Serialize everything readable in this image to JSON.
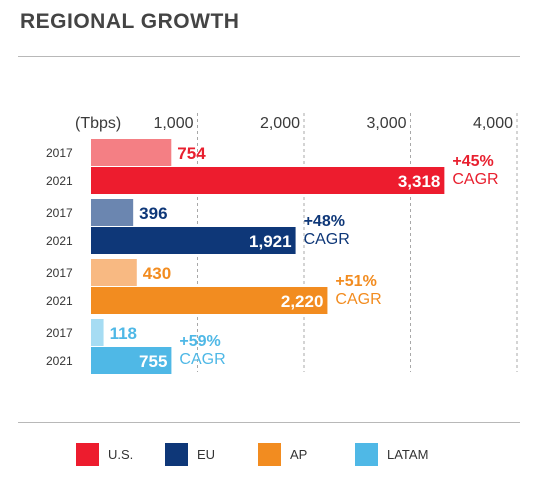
{
  "title": "REGIONAL GROWTH",
  "chart_data": {
    "type": "bar",
    "orientation": "horizontal",
    "unit_label": "(Tbps)",
    "xlim": [
      0,
      4000
    ],
    "ticks": [
      "1,000",
      "2,000",
      "3,000",
      "4,000"
    ],
    "tick_values": [
      1000,
      2000,
      3000,
      4000
    ],
    "grid": "vertical dashed",
    "legend_position": "bottom",
    "groups": [
      {
        "region": "U.S.",
        "color_2017": "#f47f84",
        "color_2021": "#ed1c2e",
        "label_color": "#e8202f",
        "bars": [
          {
            "year": "2017",
            "value": 754,
            "label": "754"
          },
          {
            "year": "2021",
            "value": 3318,
            "label": "3,318"
          }
        ],
        "cagr_value": "+45%",
        "cagr_text": "CAGR"
      },
      {
        "region": "EU",
        "color_2017": "#6b86b0",
        "color_2021": "#0e3778",
        "label_color": "#0e3778",
        "bars": [
          {
            "year": "2017",
            "value": 396,
            "label": "396"
          },
          {
            "year": "2021",
            "value": 1921,
            "label": "1,921"
          }
        ],
        "cagr_value": "+48%",
        "cagr_text": "CAGR"
      },
      {
        "region": "AP",
        "color_2017": "#f8b982",
        "color_2021": "#f28c20",
        "label_color": "#f28c20",
        "bars": [
          {
            "year": "2017",
            "value": 430,
            "label": "430"
          },
          {
            "year": "2021",
            "value": 2220,
            "label": "2,220"
          }
        ],
        "cagr_value": "+51%",
        "cagr_text": "CAGR"
      },
      {
        "region": "LATAM",
        "color_2017": "#a6dcf3",
        "color_2021": "#4fb8e6",
        "label_color": "#4fb8e6",
        "bars": [
          {
            "year": "2017",
            "value": 118,
            "label": "118"
          },
          {
            "year": "2021",
            "value": 755,
            "label": "755"
          }
        ],
        "cagr_value": "+59%",
        "cagr_text": "CAGR"
      }
    ]
  },
  "legend": [
    {
      "label": "U.S.",
      "color": "#ed1c2e"
    },
    {
      "label": "EU",
      "color": "#0e3778"
    },
    {
      "label": "AP",
      "color": "#f28c20"
    },
    {
      "label": "LATAM",
      "color": "#4fb8e6"
    }
  ]
}
